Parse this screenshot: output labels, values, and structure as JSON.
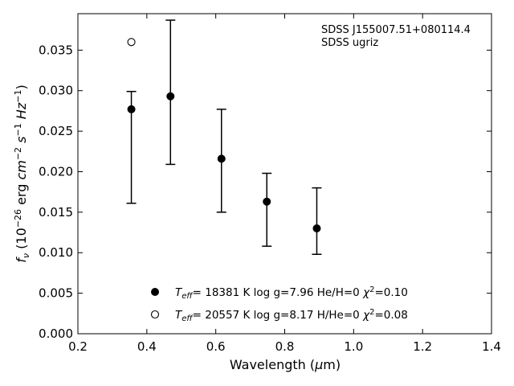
{
  "chart_data": {
    "type": "scatter",
    "annotation": [
      "SDSS J155007.51+080114.4",
      "SDSS ugriz"
    ],
    "xlabel_main": "Wavelength (",
    "xlabel_mu": "μ",
    "xlabel_unit": "m)",
    "xlim": [
      0.2,
      1.4
    ],
    "ylim": [
      0.0,
      0.0395
    ],
    "xticks": [
      0.2,
      0.4,
      0.6,
      0.8,
      1.0,
      1.2,
      1.4
    ],
    "xtick_labels": [
      "0.2",
      "0.4",
      "0.6",
      "0.8",
      "1.0",
      "1.2",
      "1.4"
    ],
    "yticks": [
      0.0,
      0.005,
      0.01,
      0.015,
      0.02,
      0.025,
      0.03,
      0.035
    ],
    "ytick_labels": [
      "0.000",
      "0.005",
      "0.010",
      "0.015",
      "0.020",
      "0.025",
      "0.030",
      "0.035"
    ],
    "observed": {
      "x": [
        0.3551,
        0.4686,
        0.6165,
        0.7481,
        0.8931
      ],
      "y": [
        0.0277,
        0.0293,
        0.0216,
        0.0163,
        0.013
      ],
      "yerr_low": [
        0.0161,
        0.0209,
        0.015,
        0.0108,
        0.0098
      ],
      "yerr_high": [
        0.0299,
        0.0387,
        0.0277,
        0.0198,
        0.018
      ]
    },
    "series": [
      {
        "marker": "filled-circle",
        "x": [
          0.3551,
          0.4686,
          0.6165,
          0.7481,
          0.8931
        ],
        "y": [
          0.0277,
          0.0293,
          0.0216,
          0.0163,
          0.013
        ]
      },
      {
        "marker": "open-circle",
        "x": [
          0.3551
        ],
        "y": [
          0.036
        ]
      }
    ],
    "legend": [
      {
        "marker": "filled-circle",
        "teff_value": "= 18381 K  log g=7.96  He/H=0  ",
        "chi_value": "=0.10"
      },
      {
        "marker": "open-circle",
        "teff_value": "= 20557 K  log g=8.17  H/He=0  ",
        "chi_value": "=0.08"
      }
    ],
    "legend_placement": "lower-center",
    "grid": false
  }
}
